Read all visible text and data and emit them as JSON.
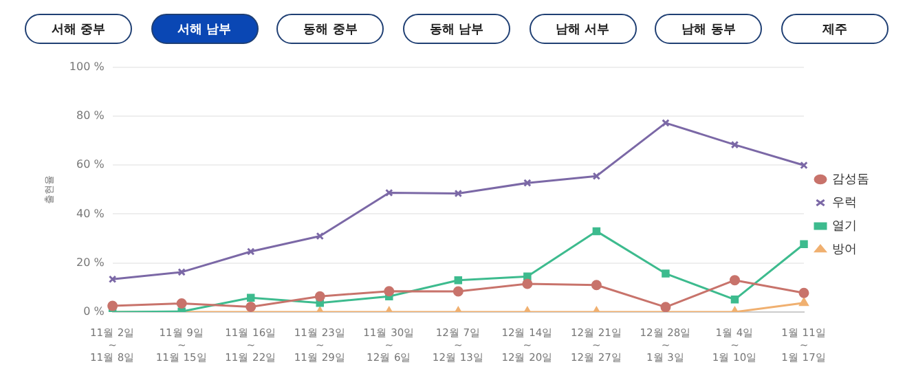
{
  "chart_data": {
    "type": "line",
    "ylabel": "출현율",
    "annotations": [
      "서해 중부",
      "서해 남부",
      "동해 중부",
      "동해 남부",
      "남해 서부",
      "남해 동부",
      "제주"
    ],
    "categories": [
      "11월 2일\n~\n11월 8일",
      "11월 9일\n~\n11월 15일",
      "11월 16일\n~\n11월 22일",
      "11월 23일\n~\n11월 29일",
      "11월 30일\n~\n12월 6일",
      "12월 7일\n~\n12월 13일",
      "12월 14일\n~\n12월 20일",
      "12월 21일\n~\n12월 27일",
      "12월 28일\n~\n1월 3일",
      "1월 4일\n~\n1월 10일",
      "1월 11일\n~\n1월 17일"
    ],
    "series": [
      {
        "name": "감성돔",
        "color": "#c8736b",
        "marker": "circle",
        "values": [
          2.5,
          3.5,
          2.1,
          6.4,
          8.5,
          8.4,
          11.5,
          11,
          2,
          13,
          7.8
        ]
      },
      {
        "name": "우럭",
        "color": "#7b68a6",
        "marker": "cross",
        "values": [
          13.4,
          16.3,
          24.7,
          31,
          48.7,
          48.4,
          52.7,
          55.5,
          77.2,
          68.3,
          59.9
        ]
      },
      {
        "name": "열기",
        "color": "#3dbb8e",
        "marker": "square",
        "values": [
          0,
          0.2,
          5.8,
          3.7,
          6.4,
          13,
          14.5,
          33,
          15.7,
          5.1,
          27.7
        ]
      },
      {
        "name": "방어",
        "color": "#f0b070",
        "marker": "triangle",
        "values": [
          0,
          0,
          0,
          0,
          0,
          0,
          0,
          0,
          0,
          0,
          3.7
        ]
      }
    ],
    "ylim": [
      0,
      100
    ],
    "yticks": [
      {
        "value": 0,
        "label": "0 %"
      },
      {
        "value": 20,
        "label": "20 %"
      },
      {
        "value": 40,
        "label": "40 %"
      },
      {
        "value": 60,
        "label": "60 %"
      },
      {
        "value": 80,
        "label": "80 %"
      },
      {
        "value": 100,
        "label": "100 %"
      }
    ],
    "grid": "y",
    "legend": "right",
    "line_style": "solid"
  }
}
